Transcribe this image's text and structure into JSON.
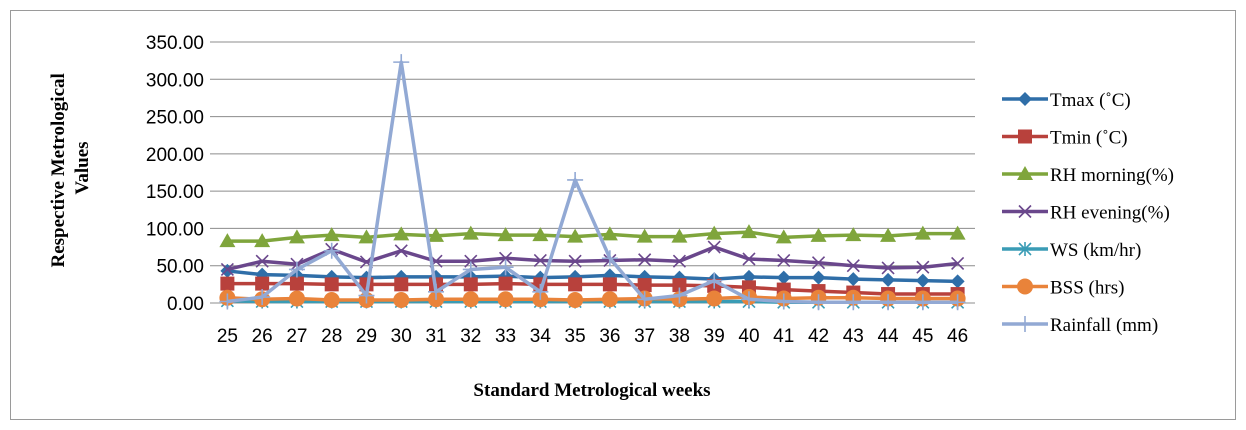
{
  "chart_data": {
    "type": "line",
    "title": "",
    "xlabel": "Standard Metrological weeks",
    "ylabel": [
      "Respective Metrological",
      "Values"
    ],
    "ylim": [
      0,
      350
    ],
    "ytick_labels": [
      "0.00",
      "50.00",
      "100.00",
      "150.00",
      "200.00",
      "250.00",
      "300.00",
      "350.00"
    ],
    "ytick_values": [
      0,
      50,
      100,
      150,
      200,
      250,
      300,
      350
    ],
    "grid": "horizontal",
    "legend_position": "right",
    "categories": [
      "25",
      "26",
      "27",
      "28",
      "29",
      "30",
      "31",
      "32",
      "33",
      "34",
      "35",
      "36",
      "37",
      "38",
      "39",
      "40",
      "41",
      "42",
      "43",
      "44",
      "45",
      "46"
    ],
    "series": [
      {
        "name": "Tmax (˚C)",
        "color": "#2f6ea8",
        "marker": "diamond",
        "values": [
          43,
          38,
          37,
          35,
          34,
          35,
          35,
          35,
          36,
          34,
          35,
          37,
          35,
          34,
          32,
          35,
          34,
          34,
          32,
          31,
          30,
          29
        ]
      },
      {
        "name": "Tmin (˚C)",
        "color": "#b8413c",
        "marker": "square",
        "values": [
          26,
          26,
          26,
          25,
          25,
          25,
          25,
          25,
          26,
          25,
          25,
          25,
          24,
          24,
          23,
          21,
          18,
          16,
          14,
          12,
          12,
          12
        ]
      },
      {
        "name": "RH morning(%)",
        "color": "#7fa53c",
        "marker": "triangle",
        "values": [
          83,
          83,
          88,
          91,
          88,
          92,
          90,
          93,
          91,
          91,
          89,
          92,
          89,
          89,
          93,
          95,
          88,
          90,
          91,
          90,
          93,
          93
        ]
      },
      {
        "name": "RH evening(%)",
        "color": "#6a478c",
        "marker": "x",
        "values": [
          45,
          56,
          52,
          72,
          55,
          70,
          56,
          56,
          60,
          57,
          56,
          57,
          58,
          56,
          75,
          59,
          57,
          54,
          50,
          47,
          48,
          53
        ]
      },
      {
        "name": "WS (km/hr)",
        "color": "#3a9cb5",
        "marker": "asterisk",
        "values": [
          3,
          2,
          2,
          2,
          2,
          2,
          2,
          2,
          2,
          2,
          2,
          2,
          2,
          2,
          2,
          2,
          1,
          1,
          1,
          1,
          1,
          1
        ]
      },
      {
        "name": "BSS (hrs)",
        "color": "#e9833a",
        "marker": "circle",
        "values": [
          7,
          5,
          6,
          4,
          4,
          4,
          5,
          5,
          5,
          5,
          4,
          5,
          6,
          5,
          6,
          8,
          6,
          7,
          7,
          6,
          6,
          6
        ]
      },
      {
        "name": "Rainfall (mm)",
        "color": "#92a9d4",
        "marker": "plus",
        "values": [
          2,
          8,
          45,
          70,
          10,
          323,
          15,
          45,
          48,
          15,
          165,
          60,
          5,
          10,
          30,
          5,
          2,
          1,
          1,
          1,
          1,
          1
        ]
      }
    ]
  }
}
